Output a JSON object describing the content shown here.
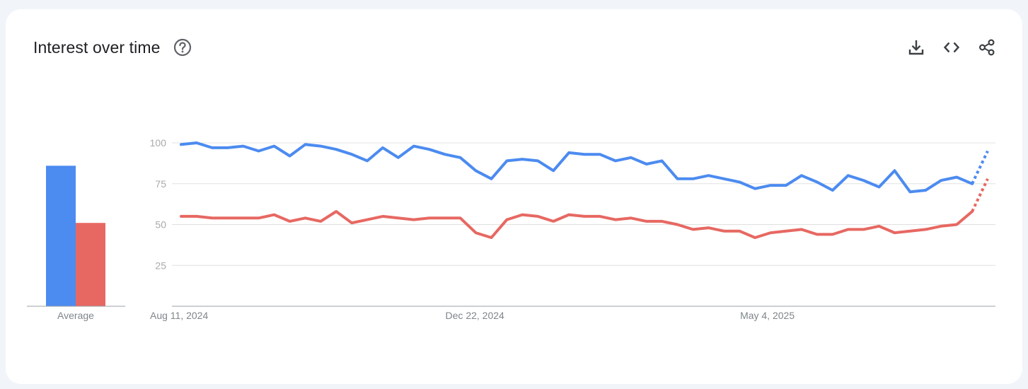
{
  "header": {
    "title": "Interest over time"
  },
  "icons": {
    "help": "help-circle-icon",
    "download": "download-icon",
    "embed": "code-embed-icon",
    "share": "share-icon"
  },
  "colors": {
    "series_a": "#4c8bf0",
    "series_b": "#e76862",
    "grid": "#e0e0e0",
    "axis": "#9aa0a6",
    "tick_label": "#aaaaaa",
    "x_label": "#80868b"
  },
  "chart_data": [
    {
      "type": "bar",
      "categories": [
        "Average"
      ],
      "series": [
        {
          "values": [
            86
          ]
        },
        {
          "values": [
            51
          ]
        }
      ],
      "ylim": [
        0,
        100
      ]
    },
    {
      "type": "line",
      "x_tick_labels": [
        "Aug 11, 2024",
        "Dec 22, 2024",
        "May 4, 2025"
      ],
      "x_tick_indices": [
        0,
        19,
        38
      ],
      "y_ticks": [
        25,
        50,
        75,
        100
      ],
      "ylim": [
        0,
        100
      ],
      "grid": true,
      "partial_last_point": true,
      "series": [
        {
          "values": [
            99,
            100,
            97,
            97,
            98,
            95,
            98,
            92,
            99,
            98,
            96,
            93,
            89,
            97,
            91,
            98,
            96,
            93,
            91,
            83,
            78,
            89,
            90,
            89,
            83,
            94,
            93,
            93,
            89,
            91,
            87,
            89,
            78,
            78,
            80,
            78,
            76,
            72,
            74,
            74,
            80,
            76,
            71,
            80,
            77,
            73,
            83,
            70,
            71,
            77,
            79,
            75,
            95
          ]
        },
        {
          "values": [
            55,
            55,
            54,
            54,
            54,
            54,
            56,
            52,
            54,
            52,
            58,
            51,
            53,
            55,
            54,
            53,
            54,
            54,
            54,
            45,
            42,
            53,
            56,
            55,
            52,
            56,
            55,
            55,
            53,
            54,
            52,
            52,
            50,
            47,
            48,
            46,
            46,
            42,
            45,
            46,
            47,
            44,
            44,
            47,
            47,
            49,
            45,
            46,
            47,
            49,
            50,
            58,
            78
          ]
        }
      ]
    }
  ]
}
